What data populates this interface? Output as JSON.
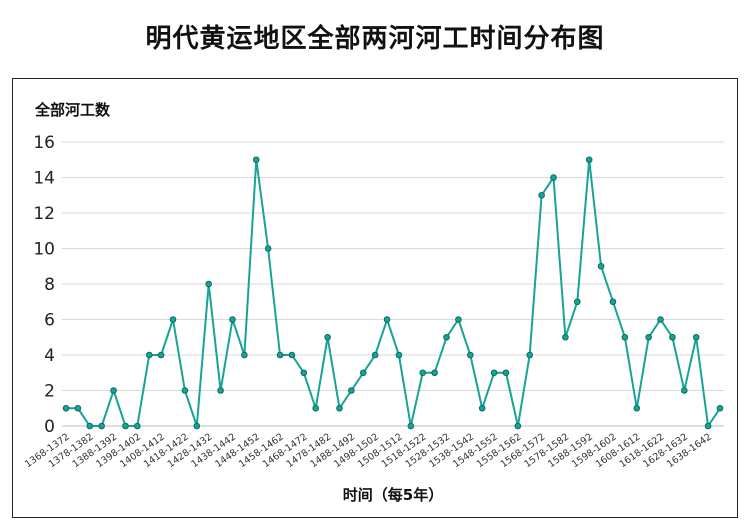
{
  "chart_data": {
    "type": "line",
    "title": "明代黄运地区全部两河河工时间分布图",
    "ylabel": "全部河工数",
    "xlabel": "时间（每5年）",
    "ylim": [
      0,
      16
    ],
    "yticks": [
      0,
      2,
      4,
      6,
      8,
      10,
      12,
      14,
      16
    ],
    "grid": true,
    "legend": "none",
    "x": [
      "1368-1372",
      "1373-1377",
      "1378-1382",
      "1383-1387",
      "1388-1392",
      "1393-1397",
      "1398-1402",
      "1403-1407",
      "1408-1412",
      "1413-1417",
      "1418-1422",
      "1423-1427",
      "1428-1432",
      "1433-1437",
      "1438-1442",
      "1443-1447",
      "1448-1452",
      "1453-1457",
      "1458-1462",
      "1463-1467",
      "1468-1472",
      "1473-1477",
      "1478-1482",
      "1483-1487",
      "1488-1492",
      "1493-1497",
      "1498-1502",
      "1503-1507",
      "1508-1512",
      "1513-1517",
      "1518-1522",
      "1523-1527",
      "1528-1532",
      "1533-1537",
      "1538-1542",
      "1543-1547",
      "1548-1552",
      "1553-1557",
      "1558-1562",
      "1563-1567",
      "1568-1572",
      "1573-1577",
      "1578-1582",
      "1583-1587",
      "1588-1592",
      "1593-1597",
      "1598-1602",
      "1603-1607",
      "1608-1612",
      "1613-1617",
      "1618-1622",
      "1623-1627",
      "1628-1632",
      "1633-1637",
      "1638-1642",
      "1643-1644"
    ],
    "labeled_ticks": [
      "1368-1372",
      "1378-1382",
      "1388-1392",
      "1398-1402",
      "1408-1412",
      "1418-1422",
      "1428-1432",
      "1438-1442",
      "1448-1452",
      "1458-1462",
      "1468-1472",
      "1478-1482",
      "1488-1492",
      "1498-1502",
      "1508-1512",
      "1518-1522",
      "1528-1532",
      "1538-1542",
      "1548-1552",
      "1558-1562",
      "1568-1572",
      "1578-1582",
      "1588-1592",
      "1598-1602",
      "1608-1612",
      "1618-1622",
      "1628-1632",
      "1638-1642"
    ],
    "series": [
      {
        "values": [
          1,
          1,
          0,
          0,
          2,
          0,
          0,
          4,
          4,
          6,
          2,
          0,
          8,
          2,
          6,
          4,
          15,
          10,
          4,
          4,
          3,
          1,
          5,
          1,
          2,
          3,
          4,
          6,
          4,
          0,
          3,
          3,
          5,
          6,
          4,
          1,
          3,
          3,
          0,
          4,
          13,
          14,
          5,
          7,
          15,
          9,
          7,
          5,
          1,
          5,
          6,
          5,
          2,
          5,
          0,
          1
        ]
      }
    ],
    "colors": {
      "line": "#17a398",
      "marker_fill": "#17a398",
      "marker_edge": "#0d6b63",
      "grid": "#d9d9d9"
    }
  }
}
